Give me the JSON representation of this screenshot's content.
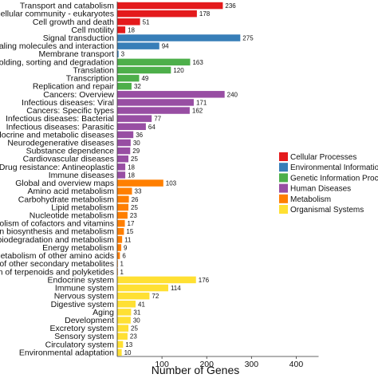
{
  "chart_data": {
    "type": "bar",
    "orientation": "horizontal",
    "title": "",
    "xlabel": "Number of Genes",
    "ylabel": "",
    "xlim": [
      0,
      450
    ],
    "xticks": [
      100,
      200,
      300,
      400
    ],
    "grid": false,
    "legend_position": "right",
    "legend": [
      {
        "name": "Cellular Processes",
        "color": "#e41a1c"
      },
      {
        "name": "Environmental Information Processing",
        "color": "#377eb8"
      },
      {
        "name": "Genetic Information Processing",
        "color": "#4daf4a"
      },
      {
        "name": "Human Diseases",
        "color": "#984ea3"
      },
      {
        "name": "Metabolism",
        "color": "#ff7f00"
      },
      {
        "name": "Organismal Systems",
        "color": "#ffe033"
      }
    ],
    "bars": [
      {
        "label": "Transport and catabolism",
        "value": 236,
        "group": 0
      },
      {
        "label": "Cellular community - eukaryotes",
        "value": 178,
        "group": 0
      },
      {
        "label": "Cell growth and death",
        "value": 51,
        "group": 0
      },
      {
        "label": "Cell motility",
        "value": 18,
        "group": 0
      },
      {
        "label": "Signal transduction",
        "value": 275,
        "group": 1
      },
      {
        "label": "Signaling molecules and interaction",
        "value": 94,
        "group": 1
      },
      {
        "label": "Membrane transport",
        "value": 3,
        "group": 1
      },
      {
        "label": "Folding, sorting and degradation",
        "value": 163,
        "group": 2
      },
      {
        "label": "Translation",
        "value": 120,
        "group": 2
      },
      {
        "label": "Transcription",
        "value": 49,
        "group": 2
      },
      {
        "label": "Replication and repair",
        "value": 32,
        "group": 2
      },
      {
        "label": "Cancers: Overview",
        "value": 240,
        "group": 3
      },
      {
        "label": "Infectious diseases: Viral",
        "value": 171,
        "group": 3
      },
      {
        "label": "Cancers: Specific types",
        "value": 162,
        "group": 3
      },
      {
        "label": "Infectious diseases: Bacterial",
        "value": 77,
        "group": 3
      },
      {
        "label": "Infectious diseases: Parasitic",
        "value": 64,
        "group": 3
      },
      {
        "label": "Endocrine and metabolic diseases",
        "value": 36,
        "group": 3
      },
      {
        "label": "Neurodegenerative diseases",
        "value": 30,
        "group": 3
      },
      {
        "label": "Substance dependence",
        "value": 29,
        "group": 3
      },
      {
        "label": "Cardiovascular diseases",
        "value": 25,
        "group": 3
      },
      {
        "label": "Drug resistance: Antineoplastic",
        "value": 18,
        "group": 3
      },
      {
        "label": "Immune diseases",
        "value": 18,
        "group": 3
      },
      {
        "label": "Global and overview maps",
        "value": 103,
        "group": 4
      },
      {
        "label": "Amino acid metabolism",
        "value": 33,
        "group": 4
      },
      {
        "label": "Carbohydrate metabolism",
        "value": 26,
        "group": 4
      },
      {
        "label": "Lipid metabolism",
        "value": 25,
        "group": 4
      },
      {
        "label": "Nucleotide metabolism",
        "value": 23,
        "group": 4
      },
      {
        "label": "Metabolism of cofactors and vitamins",
        "value": 17,
        "group": 4
      },
      {
        "label": "Glycan biosynthesis and metabolism",
        "value": 15,
        "group": 4
      },
      {
        "label": "Xenobiotics biodegradation and metabolism",
        "value": 11,
        "group": 4
      },
      {
        "label": "Energy metabolism",
        "value": 9,
        "group": 4
      },
      {
        "label": "Metabolism of other amino acids",
        "value": 6,
        "group": 4
      },
      {
        "label": "Biosynthesis of other secondary metabolites",
        "value": 1,
        "group": 4
      },
      {
        "label": "Metabolism of terpenoids and polyketides",
        "value": 1,
        "group": 4
      },
      {
        "label": "Endocrine system",
        "value": 176,
        "group": 5
      },
      {
        "label": "Immune system",
        "value": 114,
        "group": 5
      },
      {
        "label": "Nervous system",
        "value": 72,
        "group": 5
      },
      {
        "label": "Digestive system",
        "value": 41,
        "group": 5
      },
      {
        "label": "Aging",
        "value": 31,
        "group": 5
      },
      {
        "label": "Development",
        "value": 30,
        "group": 5
      },
      {
        "label": "Excretory system",
        "value": 25,
        "group": 5
      },
      {
        "label": "Sensory system",
        "value": 23,
        "group": 5
      },
      {
        "label": "Circulatory system",
        "value": 13,
        "group": 5
      },
      {
        "label": "Environmental adaptation",
        "value": 10,
        "group": 5
      }
    ]
  }
}
